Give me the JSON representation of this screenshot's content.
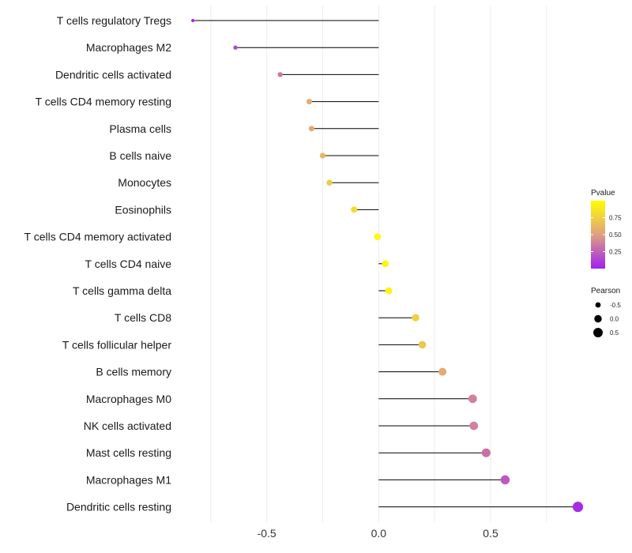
{
  "chart_data": {
    "type": "lollipop",
    "categories": [
      "T cells regulatory  Tregs",
      "Macrophages M2",
      "Dendritic cells activated",
      "T cells CD4 memory resting",
      "Plasma cells",
      "B cells naive",
      "Monocytes",
      "Eosinophils",
      "T cells CD4 memory activated",
      "T cells CD4 naive",
      "T cells gamma delta",
      "T cells CD8",
      "T cells follicular helper",
      "B cells memory",
      "Macrophages M0",
      "NK cells activated",
      "Mast cells resting",
      "Macrophages M1",
      "Dendritic cells resting"
    ],
    "pearson": [
      -0.83,
      -0.64,
      -0.44,
      -0.31,
      -0.3,
      -0.25,
      -0.22,
      -0.11,
      -0.005,
      0.03,
      0.045,
      0.165,
      0.195,
      0.285,
      0.42,
      0.425,
      0.48,
      0.565,
      0.89
    ],
    "pvalue": [
      0.05,
      0.15,
      0.35,
      0.55,
      0.55,
      0.62,
      0.72,
      0.82,
      0.98,
      0.96,
      0.95,
      0.75,
      0.7,
      0.55,
      0.38,
      0.38,
      0.32,
      0.22,
      0.05
    ],
    "xlim": [
      -0.88,
      0.92
    ],
    "xticks": [
      -0.5,
      0.0,
      0.5
    ],
    "xtick_labels": [
      "-0.5",
      "0.0",
      "0.5"
    ],
    "vertical_grid": [
      -0.75,
      -0.5,
      -0.25,
      0.0,
      0.25,
      0.5,
      0.75
    ],
    "xlabel": "",
    "ylabel": "",
    "title": "",
    "legend_color": {
      "title": "Pvalue",
      "ticks": [
        0.25,
        0.5,
        0.75
      ],
      "tick_labels": [
        "0.25",
        "0.50",
        "0.75"
      ],
      "range": [
        0.0,
        1.0
      ],
      "color_low": "#a020f0",
      "color_mid": "#e0a080",
      "color_high": "#ffff00"
    },
    "legend_size": {
      "title": "Pearson",
      "values": [
        -0.5,
        0.0,
        0.5
      ],
      "labels": [
        "-0.5",
        "0.0",
        "0.5"
      ]
    },
    "colors": {
      "stem": "#000000",
      "grid": "#ebebeb",
      "text": "#1a1a1a"
    }
  }
}
